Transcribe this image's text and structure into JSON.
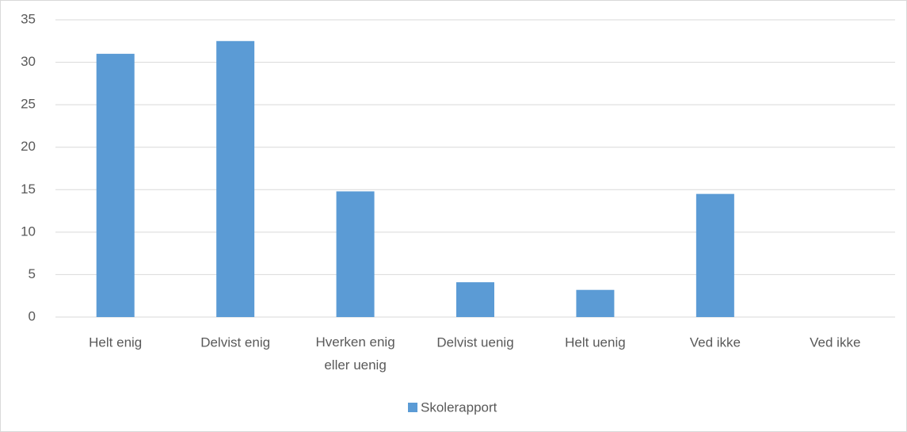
{
  "chart_data": {
    "type": "bar",
    "categories": [
      "Helt enig",
      "Delvist enig",
      "Hverken enig eller uenig",
      "Delvist uenig",
      "Helt uenig",
      "Ved ikke",
      "Ved ikke"
    ],
    "series": [
      {
        "name": "Skolerapport",
        "color": "#5b9bd5",
        "values": [
          31,
          32.5,
          14.8,
          4.1,
          3.2,
          14.5,
          0
        ]
      }
    ],
    "ylim": [
      0,
      35
    ],
    "yticks": [
      0,
      5,
      10,
      15,
      20,
      25,
      30,
      35
    ],
    "grid": true,
    "legend": "bottom"
  }
}
